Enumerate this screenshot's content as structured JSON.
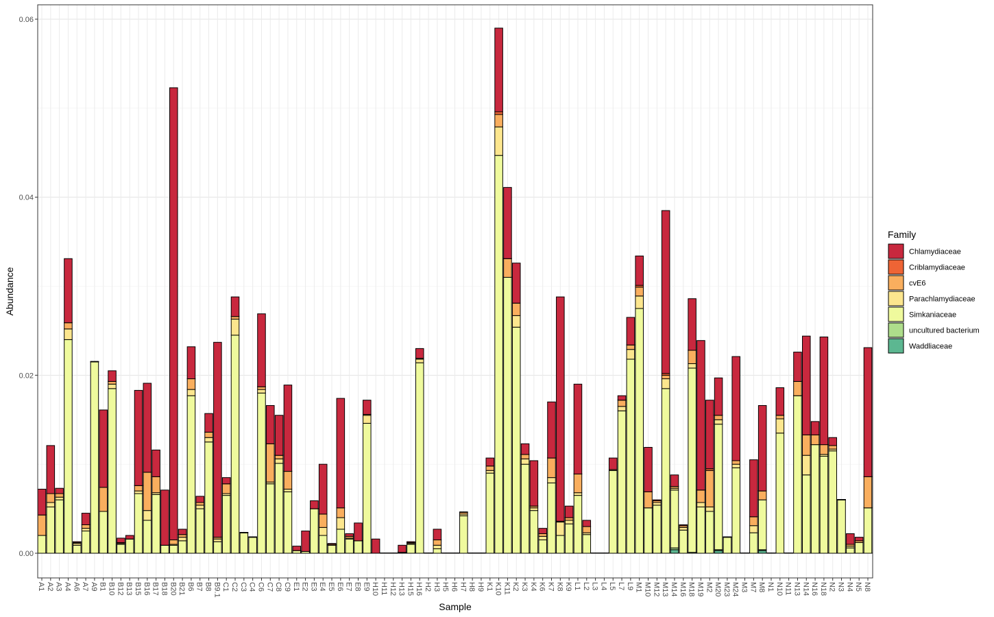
{
  "chart_data": {
    "type": "bar",
    "stacked": true,
    "xlabel": "Sample",
    "ylabel": "Abundance",
    "ylim": [
      0,
      0.062
    ],
    "y_ticks": [
      "0.00",
      "0.02",
      "0.04",
      "0.06"
    ],
    "y_tick_values": [
      0,
      0.02,
      0.04,
      0.06
    ],
    "grid": true,
    "legend": {
      "title": "Family",
      "placement": "right",
      "entries": [
        {
          "name": "Chlamydiaceae",
          "color": "#C8283E"
        },
        {
          "name": "Criblamydiaceae",
          "color": "#EE6435"
        },
        {
          "name": "cvE6",
          "color": "#F9AE5E"
        },
        {
          "name": "Parachlamydiaceae",
          "color": "#FCE68E"
        },
        {
          "name": "Simkaniaceae",
          "color": "#EFFA9D"
        },
        {
          "name": "uncultured bacterium",
          "color": "#AEDD8B"
        },
        {
          "name": "Waddliaceae",
          "color": "#5CB791"
        }
      ]
    },
    "categories": [
      "A1",
      "A2",
      "A3",
      "A4",
      "A6",
      "A7",
      "A9",
      "B1",
      "B10",
      "B12",
      "B13",
      "B15",
      "B16",
      "B17",
      "B18",
      "B20",
      "B21",
      "B6",
      "B7",
      "B8",
      "B9.1",
      "C1",
      "C2",
      "C3",
      "C4",
      "C6",
      "C7",
      "C8",
      "C9",
      "E1",
      "E2",
      "E3",
      "E4",
      "E5",
      "E6",
      "E7",
      "E8",
      "E9",
      "H10",
      "H11",
      "H12",
      "H13",
      "H15",
      "H16",
      "H2",
      "H3",
      "H5",
      "H6",
      "H7",
      "H8",
      "H9",
      "K1",
      "K10",
      "K11",
      "K2",
      "K3",
      "K4",
      "K6",
      "K7",
      "K8",
      "K9",
      "L1",
      "L2",
      "L3",
      "L4",
      "L5",
      "L7",
      "L9",
      "M1",
      "M10",
      "M12",
      "M13",
      "M14",
      "M16",
      "M18",
      "M19",
      "M2",
      "M20",
      "M23",
      "M24",
      "M3",
      "M7",
      "M8",
      "N1",
      "N10",
      "N11",
      "N13",
      "N14",
      "N16",
      "N18",
      "N2",
      "N3",
      "N4",
      "N5",
      "N8"
    ],
    "series": [
      {
        "name": "Waddliaceae",
        "values": [
          0,
          0,
          0,
          0,
          0,
          0,
          0,
          0,
          0,
          0,
          0,
          0,
          0,
          0,
          0,
          0,
          0,
          0,
          0,
          0,
          0,
          0,
          0,
          0,
          0,
          0,
          0,
          0,
          0,
          0,
          0,
          0,
          0,
          0,
          0,
          0,
          0,
          0,
          0,
          0,
          0,
          0,
          0,
          0,
          0,
          0,
          0,
          0,
          0,
          0,
          0,
          0,
          0,
          0,
          0,
          0,
          0,
          0,
          0,
          0,
          0,
          0,
          0,
          0,
          0,
          0,
          0,
          0,
          0,
          0,
          0,
          0,
          0.0004,
          0,
          0,
          0,
          0,
          0.0003,
          0,
          0,
          0,
          0,
          0.0003,
          0,
          0,
          0,
          0,
          0,
          0,
          0,
          0,
          0,
          0,
          0,
          0
        ]
      },
      {
        "name": "uncultured bacterium",
        "values": [
          0,
          0,
          0,
          0,
          0,
          0,
          0,
          0,
          0,
          0,
          0,
          0,
          0,
          0,
          0,
          0,
          0,
          0,
          0,
          0,
          0,
          0,
          0,
          0,
          0,
          0,
          0,
          0,
          0,
          0,
          0,
          0,
          0,
          0,
          0,
          0,
          0,
          0,
          0,
          0,
          0,
          0,
          0,
          0,
          0,
          0,
          0,
          0,
          0,
          0,
          0,
          0,
          0,
          0,
          0,
          0,
          0,
          0,
          0,
          0,
          0,
          0,
          0,
          0,
          0,
          0,
          0,
          0,
          0,
          0,
          0,
          0,
          0.0002,
          0,
          0.0001,
          0,
          0,
          0.0001,
          0,
          0,
          0,
          0,
          0.0001,
          0,
          0,
          0,
          0,
          0,
          0,
          0,
          0,
          0,
          0,
          0,
          0
        ]
      },
      {
        "name": "Simkaniaceae",
        "values": [
          0.002,
          0.0052,
          0.006,
          0.024,
          0.0009,
          0.0025,
          0.0215,
          0.0047,
          0.0185,
          0.001,
          0.0016,
          0.0067,
          0.0037,
          0.0066,
          0.0009,
          0.0009,
          0.0014,
          0.0177,
          0.005,
          0.0125,
          0.0013,
          0.0065,
          0.0245,
          0.0023,
          0.0018,
          0.018,
          0.0078,
          0.0101,
          0.0069,
          0.0003,
          0.0002,
          0.005,
          0.002,
          0.0009,
          0.0027,
          0.0016,
          0.0014,
          0.0146,
          0,
          0,
          0,
          0.0001,
          0.001,
          0.0214,
          0,
          0.0005,
          0,
          0,
          0.0042,
          0,
          0,
          0.009,
          0.0447,
          0.031,
          0.0254,
          0.01,
          0.0048,
          0.0015,
          0.0079,
          0.002,
          0.0033,
          0.0065,
          0.0021,
          0,
          0,
          0.0093,
          0.016,
          0.0218,
          0.0275,
          0.0051,
          0.0054,
          0.0185,
          0.0065,
          0.0026,
          0.0207,
          0.0052,
          0.0047,
          0.0141,
          0.0018,
          0.0096,
          0,
          0.0023,
          0.0056,
          0,
          0.0135,
          0,
          0.0177,
          0.0088,
          0.0122,
          0.0109,
          0.0115,
          0.006,
          0.0006,
          0.0012,
          0.0051
        ]
      },
      {
        "name": "Parachlamydiaceae",
        "values": [
          0,
          0.0005,
          0.0003,
          0.0012,
          0.0002,
          0.0003,
          0,
          0,
          0.0005,
          0.0001,
          0,
          0.0003,
          0.0011,
          0.0002,
          0,
          0.0001,
          0.0004,
          0.0007,
          0.0004,
          0.0005,
          0.0003,
          0.0002,
          0.0018,
          0,
          0,
          0.0004,
          0.0002,
          0.0005,
          0.0003,
          0,
          0,
          0,
          0.0009,
          0,
          0.0013,
          0.0001,
          0,
          0.0009,
          0,
          0,
          0,
          0,
          0.0001,
          0.0004,
          0,
          0.0004,
          0,
          0,
          0.0002,
          0,
          0,
          0.0003,
          0.0032,
          0,
          0.0013,
          0.0006,
          0.0003,
          0.0004,
          0.0006,
          0.0015,
          0.0004,
          0.0003,
          0.0002,
          0,
          0,
          0,
          0.0005,
          0.0011,
          0.0014,
          0,
          0.0003,
          0.0011,
          0.0002,
          0.0003,
          0.0005,
          0.0005,
          0.0005,
          0.0005,
          0,
          0.0004,
          0,
          0.0008,
          0,
          0,
          0.0016,
          0,
          0,
          0.0022,
          0,
          0.0002,
          0.0002,
          0,
          0.0002,
          0,
          0
        ]
      },
      {
        "name": "cvE6",
        "values": [
          0.0023,
          0.001,
          0.0004,
          0.0007,
          0.0001,
          0.0004,
          0,
          0.0027,
          0.0003,
          0.0001,
          0,
          0.0006,
          0.0043,
          0.0018,
          0,
          0.0005,
          0.0003,
          0.0012,
          0.0003,
          0.0006,
          0.0002,
          0.0011,
          0.0003,
          0,
          0,
          0.0003,
          0.0043,
          0.0004,
          0.002,
          0,
          0,
          0,
          0.0015,
          0.0001,
          0.0011,
          0.0002,
          0,
          0.0001,
          0,
          0,
          0,
          0,
          0.0001,
          0.0001,
          0,
          0.0006,
          0,
          0,
          0.0002,
          0,
          0,
          0.0005,
          0.0014,
          0.0021,
          0.0014,
          0.0005,
          0.0002,
          0.0003,
          0.0022,
          0.0001,
          0.0003,
          0.0021,
          0.0007,
          0,
          0,
          0.0001,
          0.0007,
          0.0005,
          0.001,
          0.0018,
          0.0002,
          0.0004,
          0.0002,
          0.0002,
          0.0015,
          0.0014,
          0.0041,
          0.0005,
          0,
          0.0004,
          0,
          0.001,
          0.001,
          0,
          0.0004,
          0,
          0.0016,
          0.0023,
          0.0011,
          0.0011,
          0.0004,
          0,
          0.0002,
          0.0002,
          0.0035
        ]
      },
      {
        "name": "Criblamydiaceae",
        "values": [
          0,
          0,
          0,
          0,
          0,
          0,
          0,
          0,
          0,
          0,
          0,
          0,
          0,
          0,
          0,
          0,
          0,
          0,
          0,
          0,
          0,
          0,
          0,
          0,
          0,
          0,
          0,
          0,
          0,
          0,
          0,
          0,
          0,
          0,
          0,
          0,
          0,
          0,
          0,
          0,
          0,
          0,
          0,
          0,
          0,
          0,
          0,
          0,
          0,
          0,
          0,
          0,
          0.0003,
          0,
          0,
          0,
          0,
          0,
          0,
          0,
          0,
          0,
          0,
          0,
          0,
          0,
          0,
          0,
          0.0002,
          0,
          0,
          0.0002,
          0,
          0,
          0,
          0,
          0.0002,
          0,
          0,
          0,
          0,
          0,
          0,
          0,
          0,
          0,
          0,
          0,
          0,
          0,
          0,
          0,
          0,
          0,
          0
        ]
      },
      {
        "name": "Chlamydiaceae",
        "values": [
          0.0029,
          0.0054,
          0.0006,
          0.0072,
          0.0001,
          0.0013,
          0,
          0.0087,
          0.0012,
          0.0005,
          0.0004,
          0.0107,
          0.01,
          0.003,
          0.0062,
          0.0508,
          0.0006,
          0.0036,
          0.0007,
          0.0021,
          0.0219,
          0.0007,
          0.0022,
          0,
          0,
          0.0082,
          0.0043,
          0.0045,
          0.0097,
          0.0005,
          0.0023,
          0.0009,
          0.0056,
          0.0001,
          0.0123,
          0.0003,
          0.002,
          0.0016,
          0.0016,
          0,
          0,
          0.0008,
          0.0001,
          0.0011,
          0,
          0.0012,
          0,
          0,
          0,
          0,
          0,
          0.0009,
          0.0094,
          0.008,
          0.0045,
          0.0012,
          0.0051,
          0.0006,
          0.0063,
          0.0252,
          0.0013,
          0.0101,
          0.0007,
          0,
          0,
          0.0013,
          0.0005,
          0.0031,
          0.0033,
          0.005,
          0.0001,
          0.0183,
          0.0013,
          0.0001,
          0.0058,
          0.0168,
          0.0077,
          0.0042,
          0,
          0.0117,
          0,
          0.0064,
          0.0096,
          0,
          0.0031,
          0,
          0.0033,
          0.0111,
          0.0015,
          0.0121,
          0.0009,
          0,
          0.0012,
          0.0004,
          0.0145
        ]
      }
    ]
  }
}
